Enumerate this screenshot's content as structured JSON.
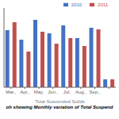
{
  "chart_data": {
    "type": "bar",
    "xlabel": "Total Suspended Solids",
    "caption": "oh showing Monthly variation of Total Suspend",
    "categories": [
      "Mar.,",
      "Apr.,",
      "May,",
      "Jun.,",
      "Jul,",
      "Aug.,",
      "Sep.,",
      null
    ],
    "series": [
      {
        "name": "2010",
        "color": "#4472C4",
        "values": [
          0.72,
          0.6,
          0.85,
          0.68,
          0.78,
          0.62,
          0.75,
          0.1
        ]
      },
      {
        "name": "2011",
        "color": "#C0504D",
        "values": [
          0.82,
          0.45,
          0.7,
          0.55,
          0.62,
          0.52,
          0.73,
          0.1
        ]
      }
    ],
    "ylim": [
      0,
      1.0
    ],
    "tick_labels": "x",
    "grid": false,
    "legend": "upper right"
  }
}
